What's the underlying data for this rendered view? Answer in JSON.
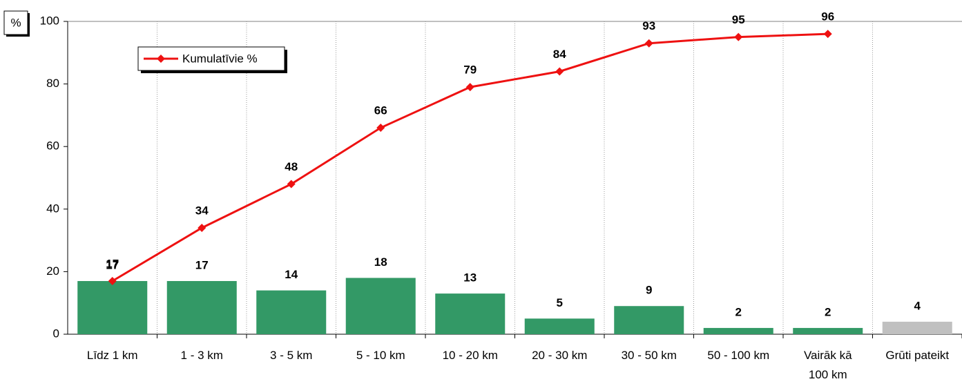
{
  "chart_data": {
    "type": "combo",
    "y_label": "%",
    "categories": [
      "Līdz 1 km",
      "1 - 3 km",
      "3 - 5 km",
      "5 - 10 km",
      "10 - 20 km",
      "20 - 30 km",
      "30 - 50 km",
      "50 - 100 km",
      "Vairāk kā\n100 km",
      "Grūti pateikt"
    ],
    "series": [
      {
        "type": "bar",
        "colors": [
          "#339966",
          "#339966",
          "#339966",
          "#339966",
          "#339966",
          "#339966",
          "#339966",
          "#339966",
          "#339966",
          "#c0c0c0"
        ],
        "values": [
          17,
          17,
          14,
          18,
          13,
          5,
          9,
          2,
          2,
          4
        ]
      },
      {
        "type": "line",
        "name": "Kumulatīvie %",
        "color": "#ee1111",
        "values": [
          17,
          34,
          48,
          66,
          79,
          84,
          93,
          95,
          96,
          null
        ]
      }
    ],
    "ylim": [
      0,
      100
    ],
    "yticks": [
      0,
      20,
      40,
      60,
      80,
      100
    ],
    "legend": "top-left"
  }
}
